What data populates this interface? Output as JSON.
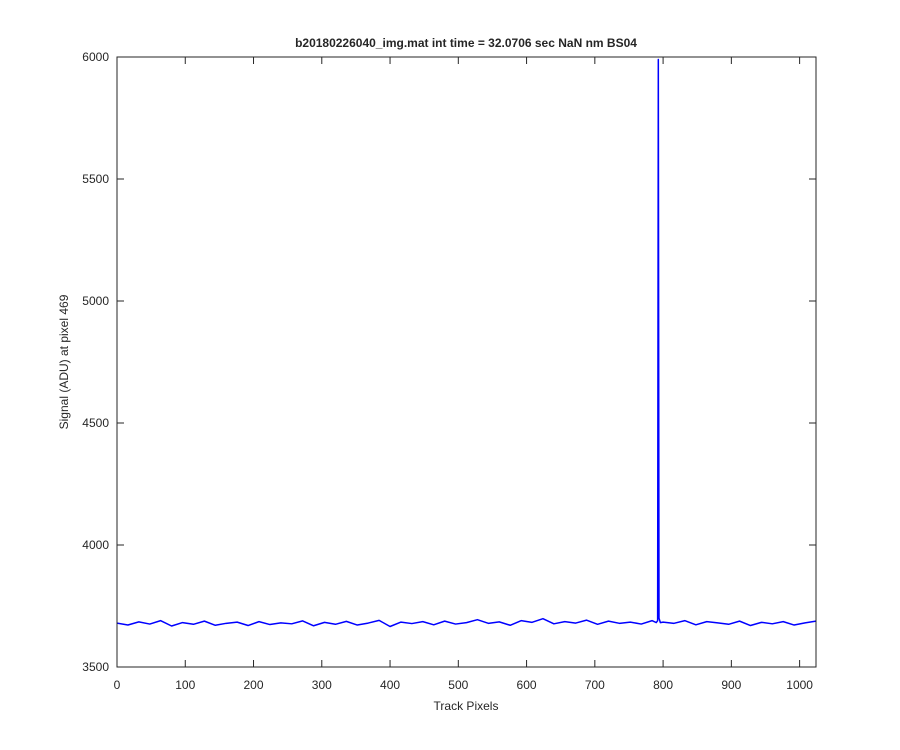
{
  "chart_data": {
    "type": "line",
    "title": "b20180226040_img.mat int time = 32.0706 sec  NaN nm BS04",
    "x_label": "Track Pixels",
    "y_label": "Signal (ADU) at pixel 469",
    "x": [
      0,
      16,
      32,
      48,
      64,
      80,
      96,
      112,
      128,
      144,
      160,
      176,
      192,
      208,
      224,
      240,
      256,
      272,
      288,
      304,
      320,
      336,
      352,
      368,
      384,
      400,
      416,
      432,
      448,
      464,
      480,
      496,
      512,
      528,
      544,
      560,
      576,
      592,
      608,
      624,
      640,
      656,
      672,
      688,
      704,
      720,
      736,
      752,
      768,
      784,
      790,
      792,
      793,
      794,
      796,
      800,
      816,
      832,
      848,
      864,
      880,
      896,
      912,
      928,
      944,
      960,
      976,
      992,
      1008,
      1024
    ],
    "series": [
      {
        "name": "Signal",
        "color": "#0000ff",
        "values": [
          3680,
          3672,
          3685,
          3676,
          3690,
          3668,
          3682,
          3675,
          3688,
          3671,
          3679,
          3684,
          3670,
          3686,
          3674,
          3681,
          3677,
          3689,
          3669,
          3683,
          3675,
          3687,
          3672,
          3680,
          3691,
          3666,
          3684,
          3678,
          3686,
          3673,
          3688,
          3676,
          3682,
          3694,
          3679,
          3685,
          3671,
          3690,
          3683,
          3698,
          3677,
          3686,
          3680,
          3692,
          3675,
          3688,
          3679,
          3684,
          3676,
          3690,
          3682,
          3690,
          5990,
          3700,
          3682,
          3684,
          3679,
          3690,
          3673,
          3686,
          3681,
          3675,
          3688,
          3670,
          3683,
          3677,
          3686,
          3672,
          3681,
          3688
        ]
      }
    ],
    "xlim": [
      0,
      1024
    ],
    "ylim": [
      3500,
      6000
    ],
    "xticks": [
      0,
      100,
      200,
      300,
      400,
      500,
      600,
      700,
      800,
      900,
      1000
    ],
    "yticks": [
      3500,
      4000,
      4500,
      5000,
      5500,
      6000
    ]
  }
}
